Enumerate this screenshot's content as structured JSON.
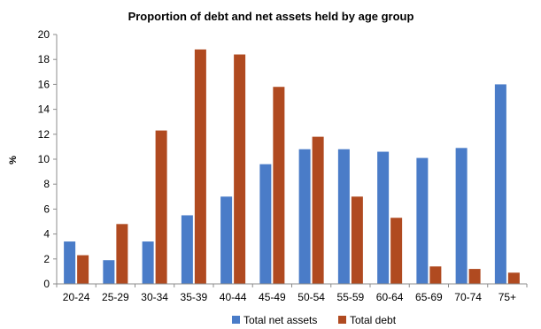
{
  "chart_data": {
    "type": "bar",
    "title": "Proportion of debt and net assets held by age group",
    "xlabel": "",
    "ylabel": "%",
    "ylim": [
      0,
      20
    ],
    "yticks": [
      0,
      2,
      4,
      6,
      8,
      10,
      12,
      14,
      16,
      18,
      20
    ],
    "grid": false,
    "legend_position": "bottom",
    "categories": [
      "20-24",
      "25-29",
      "30-34",
      "35-39",
      "40-44",
      "45-49",
      "50-54",
      "55-59",
      "60-64",
      "65-69",
      "70-74",
      "75+"
    ],
    "series": [
      {
        "name": "Total net assets",
        "color": "#4a7cc8",
        "values": [
          3.4,
          1.9,
          3.4,
          5.5,
          7.0,
          9.6,
          10.8,
          10.8,
          10.6,
          10.1,
          10.9,
          16.0
        ]
      },
      {
        "name": "Total debt",
        "color": "#b04a20",
        "values": [
          2.3,
          4.8,
          12.3,
          18.8,
          18.4,
          15.8,
          11.8,
          7.0,
          5.3,
          1.4,
          1.2,
          0.9
        ]
      }
    ]
  }
}
